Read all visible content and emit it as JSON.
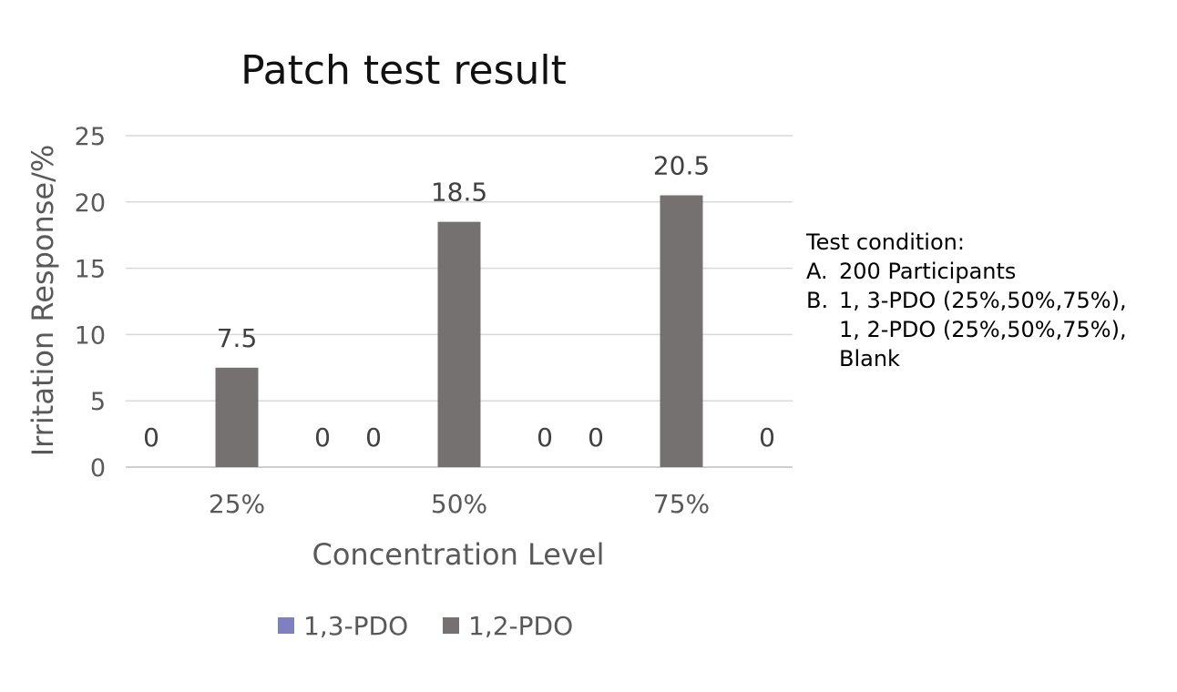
{
  "chart_data": {
    "type": "bar",
    "title": "Patch test result",
    "xlabel": "Concentration Level",
    "ylabel": "Irritation Response/%",
    "categories": [
      "25%",
      "50%",
      "75%"
    ],
    "ylim": [
      0,
      25
    ],
    "yticks": [
      0,
      5,
      10,
      15,
      20,
      25
    ],
    "grid": true,
    "legend_position": "bottom",
    "series": [
      {
        "name": "1,3-PDO",
        "values": [
          0,
          0,
          0
        ],
        "color": "#8080C0"
      },
      {
        "name": "1,2-PDO",
        "values": [
          7.5,
          18.5,
          20.5
        ],
        "color": "#757171"
      },
      {
        "values": [
          0,
          0,
          0
        ],
        "color": "#A5A5A5"
      }
    ]
  },
  "note": {
    "heading": "Test condition:",
    "items": [
      {
        "marker": "A.",
        "text": "200 Participants"
      },
      {
        "marker": "B.",
        "text": "1, 3-PDO (25%,50%,75%),"
      }
    ],
    "continuation": [
      "1, 2-PDO (25%,50%,75%),",
      "Blank"
    ]
  }
}
